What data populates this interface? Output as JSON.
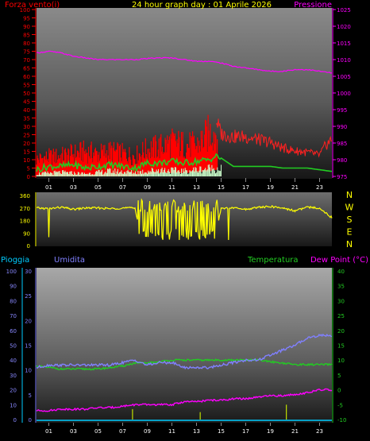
{
  "chart_data": [
    {
      "type": "line",
      "title": "24 hour graph day : 01 Aprile 2026",
      "left_axis_label": "Forza vento(i)",
      "right_axis_label": "Pressione",
      "x_ticks": [
        "01",
        "03",
        "05",
        "07",
        "09",
        "11",
        "13",
        "15",
        "17",
        "19",
        "21",
        "23"
      ],
      "ylim_left": [
        0,
        100
      ],
      "yticks_left": [
        "0",
        "5",
        "10",
        "15",
        "20",
        "25",
        "30",
        "35",
        "40",
        "45",
        "50",
        "55",
        "60",
        "65",
        "70",
        "75",
        "80",
        "85",
        "90",
        "95",
        "100"
      ],
      "ylim_right": [
        975,
        1025
      ],
      "yticks_right": [
        "975",
        "980",
        "985",
        "990",
        "995",
        "1000",
        "1005",
        "1010",
        "1015",
        "1020",
        "1025"
      ],
      "colors": {
        "wind": "#ff0000",
        "gust_high": "#ff2020",
        "pressure": "#ff00ff",
        "gust": "#22cc22",
        "avg": "#ccffcc"
      },
      "series": [
        {
          "key": "pressure",
          "unit": "hPa",
          "x": [
            0,
            1,
            2,
            3,
            4,
            5,
            6,
            7,
            8,
            9,
            10,
            11,
            12,
            13,
            14,
            15,
            16,
            17,
            18,
            19,
            20,
            21,
            22,
            23,
            24
          ],
          "values": [
            1012,
            1012.5,
            1012,
            1011,
            1010.5,
            1010,
            1010,
            1010,
            1010,
            1010.3,
            1010.5,
            1010.5,
            1010,
            1009.5,
            1009.5,
            1009,
            1008,
            1007.5,
            1007,
            1006.5,
            1006.5,
            1007,
            1007,
            1006.5,
            1006
          ]
        },
        {
          "key": "wind_max",
          "x": [
            0,
            1,
            2,
            3,
            4,
            5,
            6,
            7,
            8,
            9,
            10,
            11,
            12,
            13,
            14,
            14.6,
            15,
            16,
            17,
            18,
            19,
            20,
            21,
            22,
            23,
            23.5,
            24
          ],
          "values": [
            15,
            17,
            18,
            20,
            22,
            20,
            22,
            20,
            18,
            24,
            26,
            30,
            28,
            27,
            38,
            40,
            30,
            28,
            28,
            26,
            24,
            20,
            18,
            17,
            15,
            22,
            26
          ]
        },
        {
          "key": "wind_min",
          "x": [
            0,
            2,
            4,
            6,
            8,
            10,
            12,
            14,
            14.6,
            15,
            24
          ],
          "values": [
            0,
            0,
            0,
            0,
            0,
            2,
            2,
            3,
            4,
            4,
            4
          ]
        },
        {
          "key": "gust",
          "x": [
            0,
            1,
            2,
            3,
            4,
            5,
            6,
            7,
            8,
            9,
            10,
            11,
            12,
            13,
            14,
            14.6,
            15,
            16,
            17,
            18,
            19,
            20,
            21,
            22,
            23,
            24
          ],
          "values": [
            4,
            6,
            6,
            7,
            5,
            6,
            7,
            6,
            5,
            8,
            8,
            9,
            8,
            9,
            10,
            12,
            11,
            6,
            6,
            6,
            6,
            5,
            5,
            5,
            4,
            3
          ]
        },
        {
          "key": "avg",
          "x": [
            0,
            2,
            4,
            6,
            8,
            10,
            12,
            14,
            15
          ],
          "values": [
            2,
            3,
            2,
            4,
            3,
            5,
            4,
            6,
            6
          ]
        }
      ]
    },
    {
      "type": "line",
      "title": "",
      "right_labels": [
        "N",
        "W",
        "S",
        "E",
        "N"
      ],
      "ylim": [
        0,
        360
      ],
      "yticks": [
        "0",
        "90",
        "180",
        "270",
        "360"
      ],
      "colors": {
        "dir": "#ffff00"
      },
      "series": [
        {
          "key": "direction",
          "x": [
            0,
            1,
            2,
            3,
            4,
            5,
            6,
            7,
            8,
            8.5,
            9,
            9.5,
            10,
            10.5,
            11,
            11.5,
            12,
            12.5,
            13,
            13.5,
            14,
            14.5,
            15,
            16,
            17,
            18,
            19,
            20,
            21,
            22,
            23,
            24
          ],
          "values": [
            270,
            265,
            275,
            260,
            270,
            270,
            265,
            270,
            270,
            60,
            300,
            30,
            290,
            60,
            280,
            50,
            300,
            80,
            260,
            30,
            270,
            40,
            270,
            270,
            260,
            275,
            280,
            270,
            250,
            275,
            270,
            200
          ]
        }
      ]
    },
    {
      "type": "line",
      "title": "",
      "labels": {
        "rain": "Pioggia",
        "humidity": "Umidita",
        "temp": "Temperatura",
        "dew": "Dew Point (°C)"
      },
      "x_ticks": [
        "01",
        "03",
        "05",
        "07",
        "09",
        "11",
        "13",
        "15",
        "17",
        "19",
        "21",
        "23"
      ],
      "ylim_rain": [
        0,
        100
      ],
      "yticks_rain": [
        "0",
        "10",
        "20",
        "30",
        "40",
        "50",
        "60",
        "70",
        "80",
        "90",
        "100"
      ],
      "ylim_hum": [
        0,
        30
      ],
      "yticks_hum": [
        "0",
        "5",
        "10",
        "15",
        "20",
        "25",
        "30"
      ],
      "ylim_temp": [
        -10,
        40
      ],
      "yticks_temp": [
        "-10",
        "-5",
        "0",
        "5",
        "10",
        "15",
        "20",
        "25",
        "30",
        "35",
        "40"
      ],
      "colors": {
        "rain": "#00ccff",
        "humidity": "#8080ff",
        "temp": "#22cc22",
        "dew": "#ff00ff",
        "bars": "#c0e000"
      },
      "series": [
        {
          "key": "humidity",
          "x": [
            0,
            1,
            2,
            3,
            4,
            5,
            6,
            7,
            8,
            9,
            10,
            11,
            12,
            13,
            14,
            15,
            16,
            17,
            18,
            19,
            20,
            21,
            22,
            23,
            24
          ],
          "values": [
            10.5,
            11,
            11,
            11,
            11,
            11,
            11,
            11.5,
            12,
            11,
            11.5,
            11.5,
            10.5,
            10.5,
            10.5,
            11,
            11.5,
            12,
            12,
            13,
            14,
            15,
            16.5,
            17,
            17
          ]
        },
        {
          "key": "temp",
          "x": [
            0,
            1,
            2,
            3,
            4,
            5,
            6,
            7,
            8,
            9,
            10,
            11,
            12,
            13,
            14,
            15,
            16,
            17,
            18,
            19,
            20,
            21,
            22,
            23,
            24
          ],
          "values": [
            8,
            7.5,
            7,
            7,
            7,
            7,
            7.5,
            8,
            9,
            9,
            9.5,
            10,
            10,
            10,
            10,
            10,
            10,
            10,
            10,
            9.5,
            9,
            8.5,
            8.5,
            8.5,
            8.5
          ]
        },
        {
          "key": "dew",
          "x": [
            0,
            1,
            2,
            3,
            4,
            5,
            6,
            7,
            8,
            9,
            10,
            11,
            12,
            13,
            14,
            15,
            16,
            17,
            18,
            19,
            20,
            21,
            22,
            23,
            24
          ],
          "values": [
            -7,
            -7,
            -6.5,
            -6.5,
            -6.5,
            -6,
            -6,
            -5.5,
            -5,
            -5,
            -5,
            -5,
            -4,
            -4,
            -3.5,
            -3.5,
            -3,
            -3,
            -2.5,
            -2,
            -2,
            -1.5,
            -1,
            0,
            0
          ]
        },
        {
          "key": "rain_bars",
          "x": [
            7.8,
            13.3,
            20.3
          ],
          "values": [
            7,
            5,
            10
          ]
        }
      ]
    }
  ]
}
